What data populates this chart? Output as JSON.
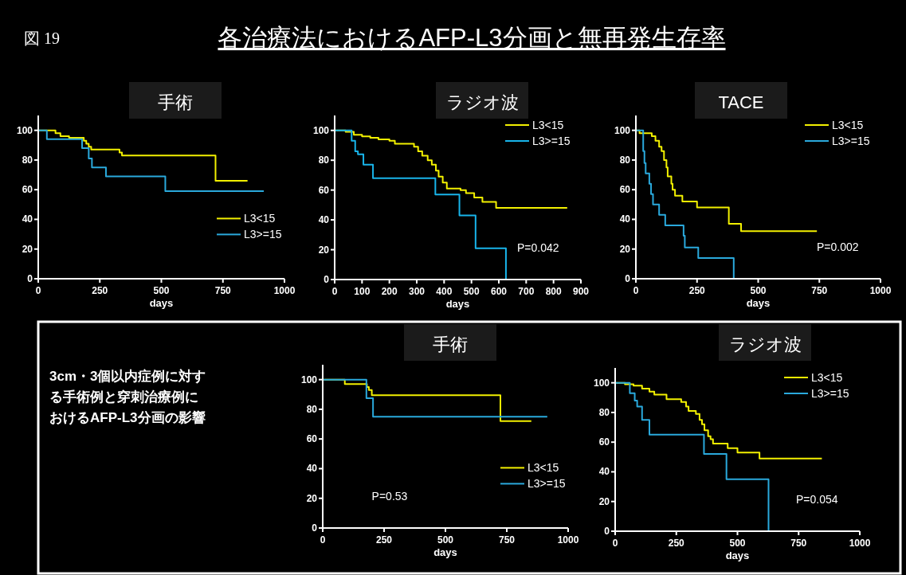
{
  "chart_data": [
    {
      "type": "other",
      "title": "各治療法におけるAFP-L3分画と無再発生存率",
      "annotations": [
        "図 19"
      ]
    },
    {
      "type": "step",
      "title": "手術",
      "xlabel": "days",
      "xlim": [
        0,
        1000
      ],
      "xticks": [
        0,
        250,
        500,
        750,
        1000
      ],
      "ylim": [
        0,
        110
      ],
      "yticks": [
        0,
        20,
        40,
        60,
        80,
        100
      ],
      "legend": "right",
      "grid": false,
      "marker": "none",
      "series": [
        {
          "name": "L3<15",
          "color": "#f2f000",
          "x": [
            0,
            70,
            90,
            125,
            185,
            195,
            205,
            215,
            330,
            340,
            720,
            850
          ],
          "values": [
            100,
            98,
            96,
            95,
            93,
            91,
            89,
            87,
            85,
            83,
            66,
            66
          ]
        },
        {
          "name": "L3>=15",
          "color": "#2aa9dc",
          "x": [
            0,
            35,
            178,
            205,
            218,
            275,
            516,
            916
          ],
          "values": [
            100,
            94,
            88,
            81,
            75,
            69,
            59,
            59
          ]
        }
      ]
    },
    {
      "type": "step",
      "title": "ラジオ波",
      "xlabel": "days",
      "xlim": [
        0,
        900
      ],
      "xticks": [
        0,
        100,
        200,
        300,
        400,
        500,
        600,
        700,
        800,
        900
      ],
      "ylim": [
        0,
        110
      ],
      "yticks": [
        0,
        20,
        40,
        60,
        80,
        100
      ],
      "legend": "top right",
      "grid": false,
      "marker": "none",
      "annotations": [
        "P=0.042"
      ],
      "series": [
        {
          "name": "L3<15",
          "color": "#f2f000",
          "x": [
            0,
            40,
            70,
            100,
            130,
            160,
            200,
            220,
            290,
            305,
            320,
            340,
            355,
            370,
            380,
            395,
            410,
            460,
            480,
            510,
            540,
            590,
            850
          ],
          "values": [
            100,
            99,
            97,
            96,
            95,
            94,
            93,
            91,
            89,
            86,
            83,
            80,
            77,
            73,
            69,
            65,
            61,
            60,
            58,
            55,
            52,
            48,
            48
          ]
        },
        {
          "name": "L3>=15",
          "color": "#18b4ea",
          "x": [
            0,
            62,
            75,
            85,
            105,
            140,
            368,
            456,
            515,
            626
          ],
          "values": [
            100,
            93,
            86,
            84,
            77,
            68,
            57,
            43,
            21,
            0
          ]
        }
      ]
    },
    {
      "type": "step",
      "title": "TACE",
      "xlabel": "days",
      "xlim": [
        0,
        1000
      ],
      "xticks": [
        0,
        250,
        500,
        750,
        1000
      ],
      "ylim": [
        0,
        110
      ],
      "yticks": [
        0,
        20,
        40,
        60,
        80,
        100
      ],
      "legend": "top right",
      "grid": false,
      "marker": "none",
      "annotations": [
        "P=0.002"
      ],
      "series": [
        {
          "name": "L3<15",
          "color": "#f2f000",
          "x": [
            0,
            15,
            65,
            80,
            95,
            105,
            115,
            125,
            130,
            145,
            150,
            160,
            190,
            250,
            380,
            430,
            740
          ],
          "values": [
            100,
            98,
            96,
            93,
            89,
            86,
            80,
            75,
            69,
            64,
            60,
            56,
            52,
            48,
            37,
            32,
            32
          ]
        },
        {
          "name": "L3>=15",
          "color": "#2aa9dc",
          "x": [
            0,
            30,
            35,
            40,
            55,
            62,
            70,
            95,
            120,
            195,
            200,
            255,
            400
          ],
          "values": [
            100,
            86,
            78,
            71,
            64,
            57,
            50,
            43,
            36,
            29,
            21,
            14,
            0
          ]
        }
      ]
    },
    {
      "type": "other",
      "title": "3cm・3個以内症例に対する手術例と穿刺治療例におけるAFP-L3分画の影響"
    },
    {
      "type": "step",
      "title": "手術",
      "xlabel": "days",
      "xlim": [
        0,
        1000
      ],
      "xticks": [
        0,
        250,
        500,
        750,
        1000
      ],
      "ylim": [
        0,
        110
      ],
      "yticks": [
        0,
        20,
        40,
        60,
        80,
        100
      ],
      "legend": "right",
      "grid": false,
      "marker": "none",
      "annotations": [
        "P=0.53"
      ],
      "series": [
        {
          "name": "L3<15",
          "color": "#f2f000",
          "x": [
            0,
            90,
            180,
            188,
            200,
            724,
            850
          ],
          "values": [
            100,
            97,
            95,
            93,
            89.5,
            72,
            72
          ]
        },
        {
          "name": "L3>=15",
          "color": "#2aa9dc",
          "x": [
            0,
            178,
            205,
            915
          ],
          "values": [
            100,
            87.5,
            75,
            75
          ]
        }
      ]
    },
    {
      "type": "step",
      "title": "ラジオ波",
      "xlabel": "days",
      "xlim": [
        0,
        1000
      ],
      "xticks": [
        0,
        250,
        500,
        750,
        1000
      ],
      "ylim": [
        0,
        110
      ],
      "yticks": [
        0,
        20,
        40,
        60,
        80,
        100
      ],
      "legend": "top right",
      "grid": false,
      "marker": "none",
      "annotations": [
        "P=0.054"
      ],
      "series": [
        {
          "name": "L3<15",
          "color": "#f2f000",
          "x": [
            0,
            40,
            75,
            110,
            140,
            160,
            210,
            270,
            290,
            300,
            330,
            345,
            355,
            365,
            380,
            390,
            400,
            460,
            500,
            590,
            845
          ],
          "values": [
            100,
            99,
            98,
            96,
            94,
            92,
            89,
            87,
            84,
            81,
            79,
            75,
            72,
            68,
            64,
            62,
            59,
            56,
            53,
            49,
            49
          ]
        },
        {
          "name": "L3>=15",
          "color": "#2aa9dc",
          "x": [
            0,
            60,
            80,
            90,
            110,
            140,
            363,
            455,
            627
          ],
          "values": [
            100,
            93,
            88,
            84,
            75,
            65,
            52,
            35,
            0
          ]
        }
      ]
    }
  ]
}
